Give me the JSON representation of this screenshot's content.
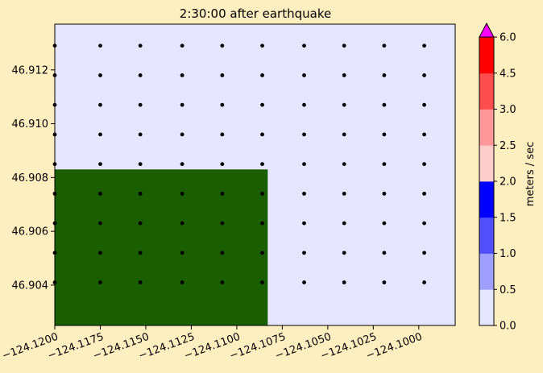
{
  "chart_data": {
    "type": "scatter",
    "title": "2:30:00 after earthquake",
    "xlabel": "",
    "ylabel": "",
    "xlim": [
      -124.12,
      -124.098
    ],
    "ylim": [
      46.9025,
      46.9137
    ],
    "x_ticks": [
      -124.12,
      -124.1175,
      -124.115,
      -124.1125,
      -124.11,
      -124.1075,
      -124.105,
      -124.1025,
      -124.1
    ],
    "x_tick_labels": [
      "−124.1200",
      "−124.1175",
      "−124.1150",
      "−124.1125",
      "−124.1100",
      "−124.1075",
      "−124.1050",
      "−124.1025",
      "−124.1000"
    ],
    "y_ticks": [
      46.904,
      46.906,
      46.908,
      46.91,
      46.912
    ],
    "y_tick_labels": [
      "46.904",
      "46.906",
      "46.908",
      "46.910",
      "46.912"
    ],
    "grid": false,
    "background_color": "#E5E5FF",
    "land": {
      "color": "#1A5E00",
      "x_range": [
        -124.12,
        -124.1083
      ],
      "y_range": [
        46.9025,
        46.9083
      ]
    },
    "points_x": [
      -124.12,
      -124.1175,
      -124.1153,
      -124.113,
      -124.1108,
      -124.1086,
      -124.1063,
      -124.1041,
      -124.1019,
      -124.0997
    ],
    "points_y": [
      46.9129,
      46.9118,
      46.9107,
      46.9096,
      46.9085,
      46.9074,
      46.9063,
      46.9052,
      46.9041
    ],
    "colorbar": {
      "label": "meters / sec",
      "levels": [
        0.0,
        0.5,
        1.0,
        1.5,
        2.0,
        2.5,
        3.0,
        4.5,
        6.0
      ],
      "level_labels": [
        "0.0",
        "0.5",
        "1.0",
        "1.5",
        "2.0",
        "2.5",
        "3.0",
        "4.5",
        "6.0"
      ],
      "colors": [
        "#E5E5FF",
        "#9F9FFF",
        "#5050FF",
        "#0000FF",
        "#FFCCCC",
        "#FF9999",
        "#FF4D4D",
        "#FF0000"
      ],
      "extend_color": "#FF00FF"
    }
  }
}
